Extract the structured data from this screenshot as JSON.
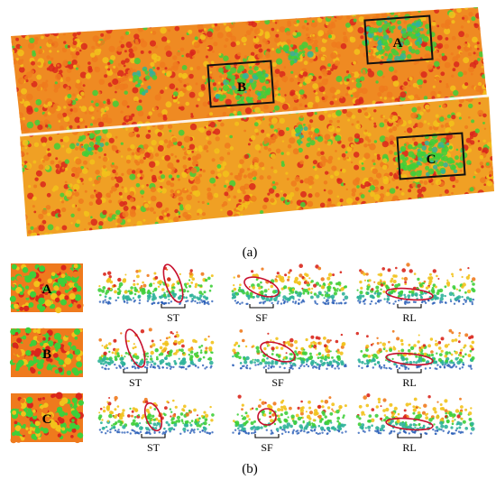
{
  "figure": {
    "panel_a": {
      "caption": "(a)",
      "regions": [
        {
          "label": "A"
        },
        {
          "label": "B"
        },
        {
          "label": "C"
        }
      ]
    },
    "panel_b": {
      "caption": "(b)",
      "rows": [
        {
          "thumb_label": "A",
          "profile_labels": [
            "ST",
            "SF",
            "RL"
          ]
        },
        {
          "thumb_label": "B",
          "profile_labels": [
            "ST",
            "SF",
            "RL"
          ]
        },
        {
          "thumb_label": "C",
          "profile_labels": [
            "ST",
            "SF",
            "RL"
          ]
        }
      ]
    },
    "colors": {
      "red": "#d9261c",
      "orange": "#ef7a1d",
      "yellow": "#f2c21b",
      "green": "#3fcf3a",
      "teal": "#2fb39a",
      "blue": "#2a5fb8",
      "ellipse": "#c8102e",
      "box": "#111111"
    }
  }
}
